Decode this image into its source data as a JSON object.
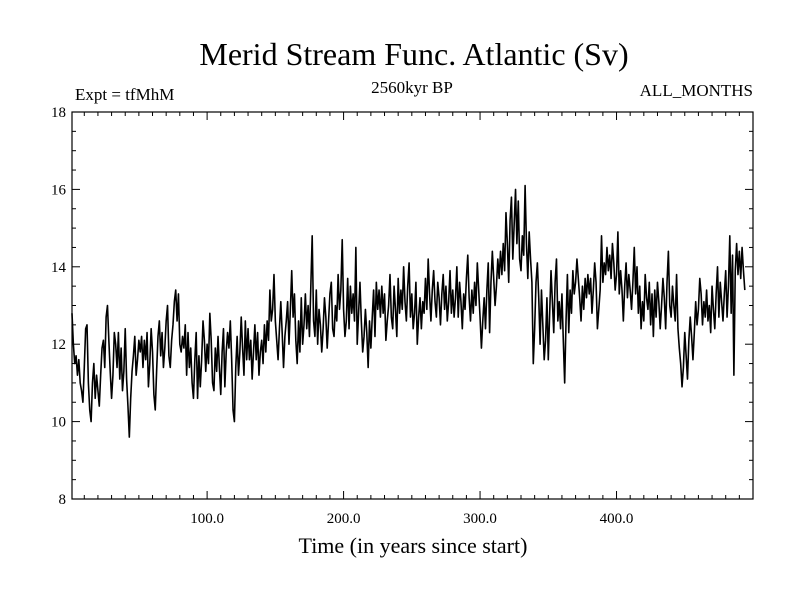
{
  "chart_data": {
    "type": "line",
    "title": "Merid Stream Func. Atlantic (Sv)",
    "subtitle": "2560kyr BP",
    "left_annotation": "Expt = tfMhM",
    "right_annotation": "ALL_MONTHS",
    "xlabel": "Time (in years since start)",
    "ylabel": "",
    "xlim": [
      1,
      500
    ],
    "ylim": [
      8,
      18
    ],
    "x_ticks": [
      100,
      200,
      300,
      400
    ],
    "x_tick_labels": [
      "100.0",
      "200.0",
      "300.0",
      "400.0"
    ],
    "y_ticks": [
      8,
      10,
      12,
      14,
      16,
      18
    ],
    "y_tick_labels": [
      "8",
      "10",
      "12",
      "14",
      "16",
      "18"
    ],
    "grid": false,
    "series": [
      {
        "name": "Merid Stream Func. Atlantic",
        "color": "#000000",
        "x_start": 1,
        "x_step": 1,
        "values": [
          12.8,
          12.0,
          11.5,
          11.7,
          11.2,
          11.6,
          11.0,
          10.8,
          10.5,
          11.4,
          12.4,
          12.5,
          11.0,
          10.3,
          10.0,
          11.0,
          11.5,
          10.6,
          11.2,
          10.8,
          10.4,
          11.2,
          11.9,
          12.1,
          11.4,
          12.7,
          13.0,
          12.1,
          11.3,
          10.6,
          11.2,
          12.3,
          12.0,
          11.4,
          12.3,
          11.1,
          11.9,
          10.8,
          11.3,
          12.4,
          11.1,
          10.4,
          9.6,
          10.6,
          11.3,
          11.7,
          12.2,
          11.2,
          11.6,
          12.1,
          11.8,
          12.2,
          11.4,
          12.1,
          11.6,
          12.3,
          10.9,
          11.5,
          12.4,
          11.8,
          10.7,
          10.3,
          11.3,
          12.2,
          12.6,
          11.7,
          12.3,
          11.4,
          11.9,
          12.6,
          13.0,
          11.7,
          11.4,
          12.1,
          12.5,
          13.1,
          13.4,
          12.6,
          13.3,
          12.0,
          11.8,
          12.2,
          11.9,
          12.5,
          11.2,
          12.3,
          11.4,
          11.9,
          11.0,
          10.6,
          11.6,
          12.3,
          10.6,
          11.7,
          10.9,
          11.6,
          12.6,
          12.1,
          11.3,
          12.0,
          11.5,
          12.8,
          12.1,
          11.0,
          10.8,
          11.9,
          11.3,
          12.2,
          11.4,
          10.7,
          11.8,
          12.4,
          10.9,
          11.8,
          12.3,
          11.9,
          12.6,
          11.6,
          10.3,
          10.0,
          11.4,
          12.2,
          11.2,
          11.8,
          12.7,
          11.9,
          11.2,
          12.6,
          11.6,
          12.4,
          11.6,
          12.1,
          11.1,
          11.8,
          12.5,
          11.6,
          12.3,
          11.2,
          11.8,
          12.1,
          11.5,
          12.5,
          11.8,
          12.6,
          12.1,
          13.4,
          12.6,
          12.9,
          13.8,
          12.6,
          12.1,
          11.6,
          12.4,
          13.1,
          12.3,
          11.4,
          12.2,
          12.6,
          13.1,
          12.0,
          12.9,
          13.9,
          12.7,
          13.3,
          12.1,
          11.5,
          12.6,
          11.8,
          13.2,
          12.0,
          12.5,
          13.3,
          12.4,
          13.0,
          12.2,
          13.5,
          14.8,
          12.6,
          12.2,
          13.4,
          12.0,
          12.9,
          12.5,
          11.8,
          12.4,
          13.2,
          12.7,
          11.9,
          12.6,
          13.3,
          13.6,
          12.4,
          12.2,
          13.0,
          12.6,
          13.8,
          12.9,
          13.4,
          14.7,
          12.9,
          12.2,
          12.6,
          13.7,
          12.4,
          13.5,
          12.8,
          13.3,
          12.6,
          14.5,
          12.0,
          12.8,
          13.6,
          12.6,
          11.8,
          12.2,
          12.9,
          12.3,
          11.4,
          12.6,
          11.9,
          12.7,
          13.4,
          12.2,
          13.6,
          12.9,
          13.4,
          12.7,
          13.5,
          12.8,
          13.3,
          12.1,
          12.6,
          13.0,
          13.8,
          12.7,
          12.4,
          13.5,
          12.9,
          12.2,
          13.7,
          12.8,
          13.4,
          12.9,
          14.0,
          13.1,
          12.6,
          13.5,
          14.1,
          12.7,
          13.3,
          12.4,
          12.8,
          13.6,
          12.0,
          12.7,
          13.2,
          12.4,
          13.1,
          12.8,
          13.7,
          12.9,
          14.2,
          13.3,
          12.6,
          13.4,
          13.9,
          13.1,
          12.7,
          13.6,
          13.2,
          12.5,
          13.3,
          13.8,
          12.9,
          13.5,
          12.6,
          13.1,
          13.9,
          12.8,
          13.4,
          12.7,
          13.2,
          14.0,
          12.7,
          13.6,
          13.1,
          12.4,
          13.3,
          12.9,
          13.7,
          14.3,
          13.2,
          12.6,
          13.4,
          12.8,
          13.6,
          13.0,
          14.1,
          13.4,
          12.7,
          11.9,
          12.6,
          13.2,
          12.4,
          13.4,
          14.1,
          12.3,
          13.6,
          14.4,
          13.7,
          13.0,
          13.5,
          14.2,
          13.7,
          14.4,
          13.8,
          14.6,
          13.9,
          15.4,
          14.6,
          13.6,
          15.2,
          15.8,
          14.2,
          15.1,
          16.0,
          14.6,
          15.7,
          14.2,
          13.9,
          14.8,
          14.3,
          16.1,
          14.6,
          13.7,
          14.9,
          14.2,
          13.6,
          11.5,
          12.4,
          13.6,
          14.1,
          13.2,
          12.0,
          13.4,
          12.5,
          11.6,
          12.1,
          13.2,
          11.6,
          12.8,
          13.9,
          13.1,
          12.3,
          13.6,
          14.2,
          12.6,
          13.1,
          12.4,
          13.3,
          12.1,
          11.0,
          12.6,
          13.8,
          12.3,
          13.4,
          12.8,
          13.9,
          13.3,
          13.6,
          14.2,
          13.7,
          13.2,
          12.6,
          13.5,
          12.9,
          13.7,
          13.2,
          13.8,
          13.3,
          13.7,
          12.8,
          13.4,
          14.1,
          13.6,
          12.4,
          12.9,
          13.4,
          14.8,
          13.6,
          14.1,
          13.8,
          14.5,
          13.9,
          14.3,
          13.7,
          14.6,
          14.1,
          13.4,
          13.8,
          14.9,
          13.3,
          13.9,
          13.4,
          12.6,
          13.5,
          14.1,
          13.2,
          13.8,
          13.4,
          12.9,
          13.6,
          14.5,
          13.3,
          14.0,
          12.8,
          13.5,
          12.4,
          13.1,
          12.6,
          13.8,
          13.2,
          12.9,
          13.6,
          12.5,
          13.3,
          12.2,
          13.4,
          12.7,
          13.6,
          13.1,
          12.4,
          13.0,
          13.7,
          13.2,
          12.4,
          13.6,
          14.4,
          13.0,
          12.7,
          13.5,
          13.0,
          12.6,
          13.8,
          12.4,
          11.9,
          11.5,
          10.9,
          11.4,
          12.3,
          11.7,
          11.1,
          12.1,
          12.7,
          12.2,
          11.6,
          12.3,
          13.1,
          12.5,
          12.9,
          13.7,
          13.3,
          12.5,
          13.1,
          12.7,
          13.4,
          12.6,
          13.0,
          12.3,
          13.5,
          12.9,
          12.4,
          13.3,
          14.0,
          12.7,
          13.6,
          13.1,
          12.6,
          13.3,
          13.9,
          12.7,
          13.5,
          14.8,
          12.8,
          14.3,
          11.2,
          13.9,
          14.6,
          13.8,
          14.4,
          13.7,
          14.5,
          13.9,
          13.4
        ]
      }
    ]
  }
}
